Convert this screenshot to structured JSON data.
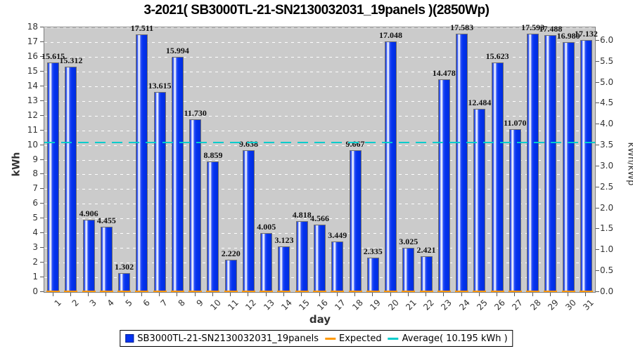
{
  "title": "3-2021( SB3000TL-21-SN2130032031_19panels )(2850Wp)",
  "chart_data": {
    "type": "bar",
    "title": "3-2021( SB3000TL-21-SN2130032031_19panels )(2850Wp)",
    "xlabel": "day",
    "ylabel": "kWh",
    "y2label": "kWh/kWp",
    "categories": [
      1,
      2,
      3,
      4,
      5,
      6,
      7,
      8,
      9,
      10,
      11,
      12,
      13,
      14,
      15,
      16,
      17,
      18,
      19,
      20,
      21,
      22,
      23,
      24,
      25,
      26,
      27,
      28,
      29,
      30,
      31
    ],
    "values": [
      15.615,
      15.312,
      4.906,
      4.455,
      1.302,
      17.511,
      13.615,
      15.994,
      11.73,
      8.859,
      2.22,
      9.638,
      4.005,
      3.123,
      4.818,
      4.566,
      3.449,
      9.667,
      2.335,
      17.048,
      3.025,
      2.421,
      14.478,
      17.583,
      12.484,
      15.623,
      11.07,
      17.593,
      17.488,
      16.98,
      17.132
    ],
    "value_labels": [
      "15.615",
      "15.312",
      "4.906",
      "4.455",
      "1.302",
      "17.511",
      "13.615",
      "15.994",
      "11.730",
      "8.859",
      "2.220",
      "9.638",
      "4.005",
      "3.123",
      "4.818",
      "4.566",
      "3.449",
      "9.667",
      "2.335",
      "17.048",
      "3.025",
      "2.421",
      "14.478",
      "17.583",
      "12.484",
      "15.623",
      "11.070",
      "17.593",
      "17.488",
      "16.980",
      "17.132"
    ],
    "ylim": [
      0,
      18
    ],
    "ytick_step": 1,
    "y2_ticks": [
      "0.0",
      "0.5",
      "1.0",
      "1.5",
      "2.0",
      "2.5",
      "3.0",
      "3.5",
      "4.0",
      "4.5",
      "5.0",
      "5.5",
      "6.0"
    ],
    "kwp": 2.85,
    "average": 10.195,
    "expected_baseline": 0,
    "grid": "horizontal white dashed lines at each kWh",
    "legend_position": "bottom",
    "colors": {
      "bar": "#0433f0",
      "expected": "#ff9900",
      "average": "#00cccc",
      "plot_background": "#cbcbcb",
      "gridline": "#ffffff"
    },
    "legend": [
      {
        "label": "SB3000TL-21-SN2130032031_19panels",
        "marker": "square",
        "color": "#0433f0"
      },
      {
        "label": "Expected",
        "marker": "dash",
        "color": "#ff9900"
      },
      {
        "label": "Average( 10.195 kWh )",
        "marker": "dash",
        "color": "#00cccc"
      }
    ]
  }
}
